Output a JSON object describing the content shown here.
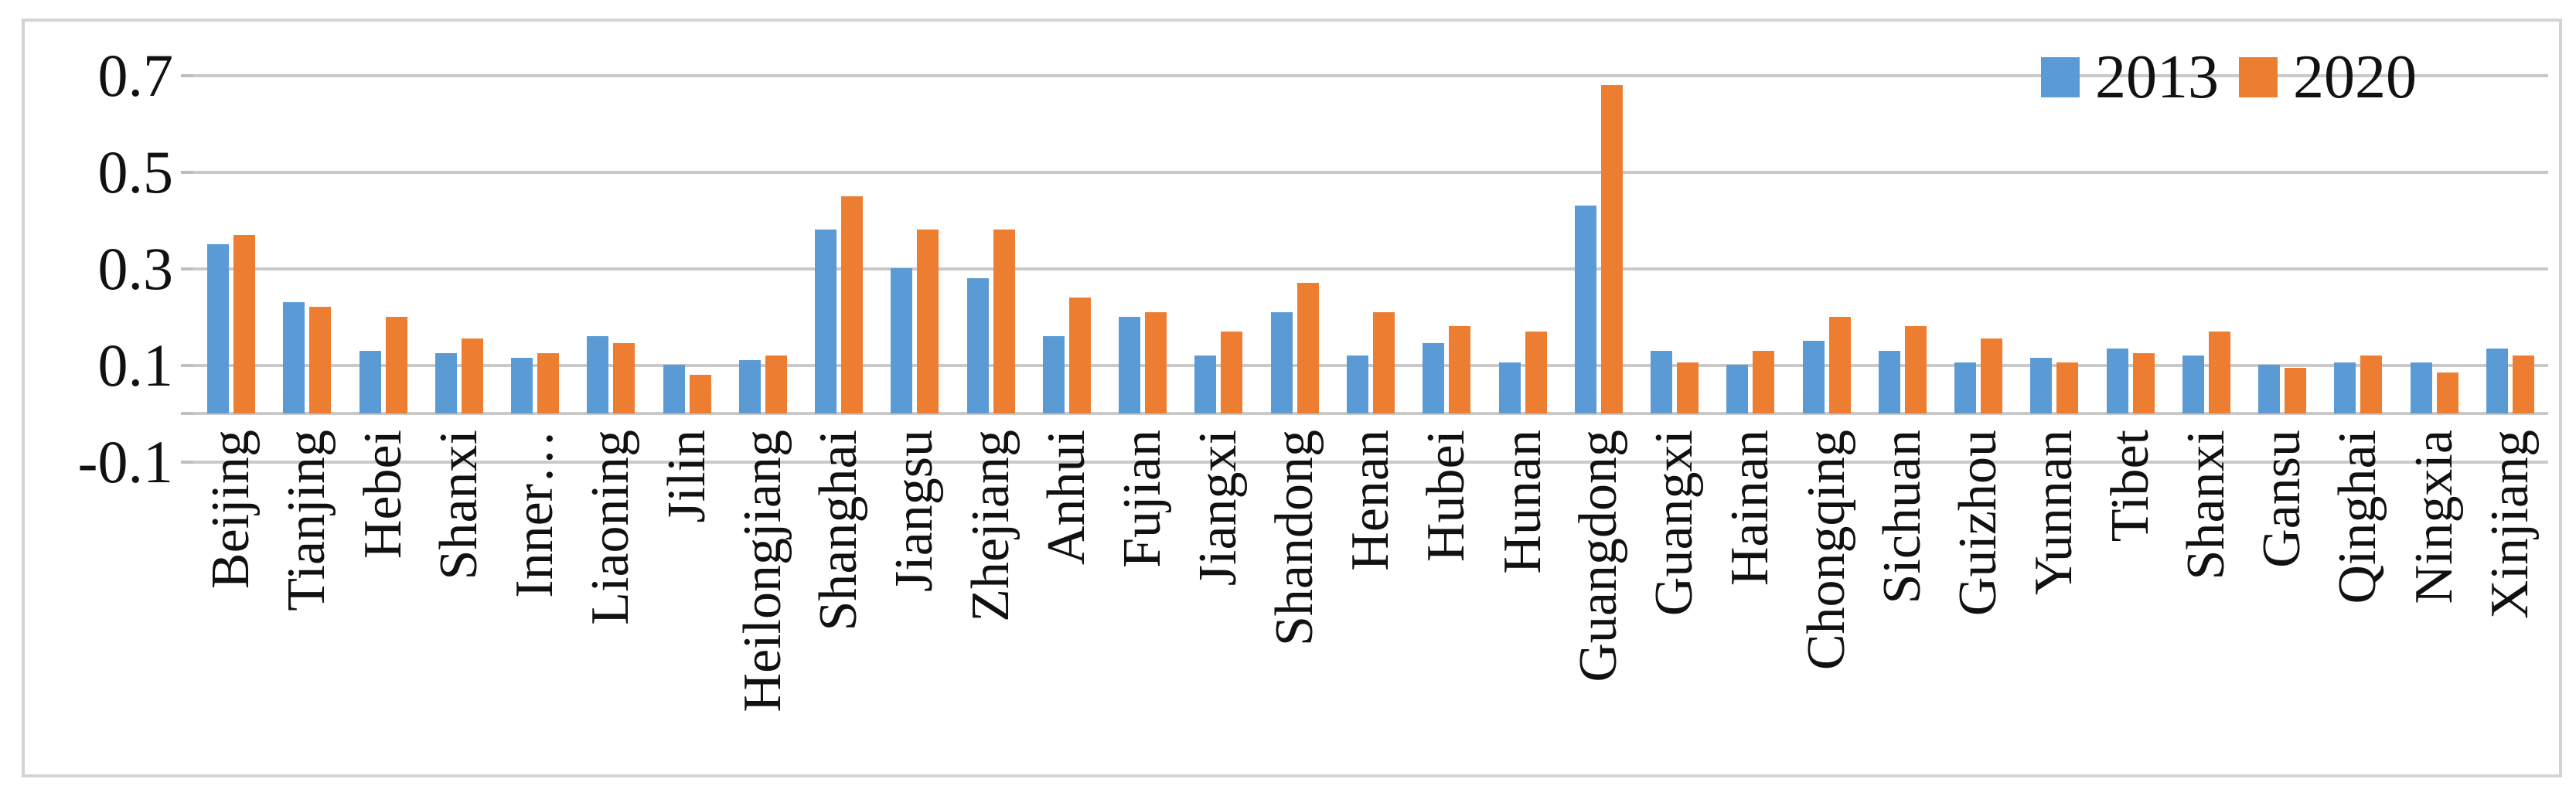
{
  "legend": {
    "items": [
      {
        "label": "2013",
        "color": "#5B9BD5"
      },
      {
        "label": "2020",
        "color": "#ED7D31"
      }
    ]
  },
  "y_axis": {
    "tick_labels": [
      "0.7",
      "0.5",
      "0.3",
      "0.1",
      "-0.1"
    ],
    "tick_values": [
      0.7,
      0.5,
      0.3,
      0.1,
      -0.1
    ]
  },
  "colors": {
    "series_2013": "#5B9BD5",
    "series_2020": "#ED7D31",
    "gridline": "#c9c9c9",
    "frame_border": "#d4d4d4",
    "text": "#111111"
  },
  "chart_data": {
    "type": "bar",
    "title": "",
    "xlabel": "",
    "ylabel": "",
    "categories": [
      "Beijing",
      "Tianjing",
      "Hebei",
      "Shanxi",
      "Inner…",
      "Liaoning",
      "Jilin",
      "Heilongjiang",
      "Shanghai",
      "Jiangsu",
      "Zhejiang",
      "Anhui",
      "Fujian",
      "Jiangxi",
      "Shandong",
      "Henan",
      "Hubei",
      "Hunan",
      "Guangdong",
      "Guangxi",
      "Hainan",
      "Chongqing",
      "Sichuan",
      "Guizhou",
      "Yunnan",
      "Tibet",
      "Shanxi",
      "Gansu",
      "Qinghai",
      "Ningxia",
      "Xinjiang"
    ],
    "series": [
      {
        "name": "2013",
        "color": "#5B9BD5",
        "values": [
          0.35,
          0.23,
          0.13,
          0.125,
          0.115,
          0.16,
          0.1,
          0.11,
          0.38,
          0.3,
          0.28,
          0.16,
          0.2,
          0.12,
          0.21,
          0.12,
          0.145,
          0.105,
          0.43,
          0.13,
          0.1,
          0.15,
          0.13,
          0.105,
          0.115,
          0.135,
          0.12,
          0.1,
          0.105,
          0.105,
          0.135
        ]
      },
      {
        "name": "2020",
        "color": "#ED7D31",
        "values": [
          0.37,
          0.22,
          0.2,
          0.155,
          0.125,
          0.145,
          0.08,
          0.12,
          0.45,
          0.38,
          0.38,
          0.24,
          0.21,
          0.17,
          0.27,
          0.21,
          0.18,
          0.17,
          0.68,
          0.105,
          0.13,
          0.2,
          0.18,
          0.155,
          0.105,
          0.125,
          0.17,
          0.095,
          0.12,
          0.085,
          0.12
        ]
      }
    ],
    "ylim": [
      -0.1,
      0.76
    ],
    "yticks": [
      0.7,
      0.5,
      0.3,
      0.1,
      -0.1
    ],
    "gridline_values": [
      0.7,
      0.5,
      0.3,
      0.1,
      0,
      -0.1
    ],
    "grid": true,
    "legend_position": "top-right"
  }
}
